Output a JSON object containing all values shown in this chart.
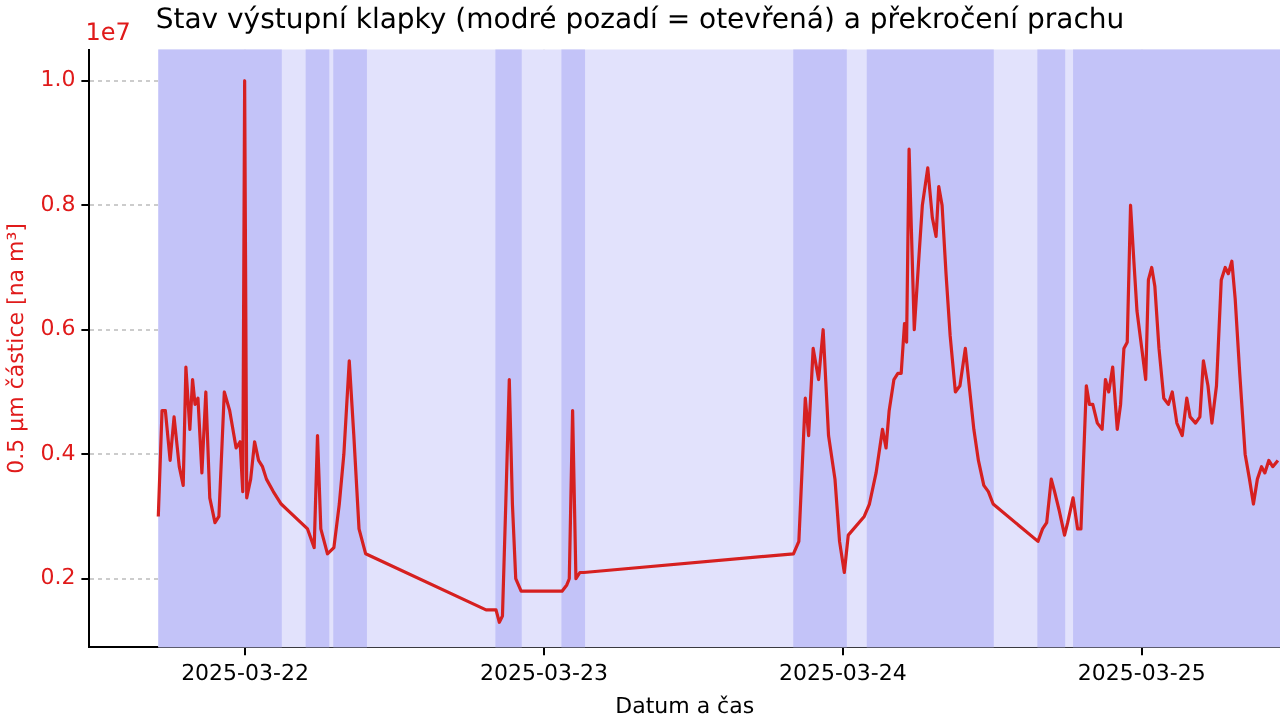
{
  "chart_data": {
    "type": "line",
    "title": "Stav výstupní klapky (modré pozadí = otevřená) a překročení prachu",
    "xlabel": "Datum a čas",
    "ylabel": "0.5 µm částice [na m³]",
    "annotations": [
      "1e7"
    ],
    "xlim": [
      "2025-03-21T11:30",
      "2025-03-25T11:06"
    ],
    "xticks": [
      "2025-03-22",
      "2025-03-23",
      "2025-03-24",
      "2025-03-25"
    ],
    "ylim": [
      0.09,
      1.05
    ],
    "yticks": [
      0.2,
      0.4,
      0.6,
      0.8,
      {
        "value": 1,
        "label": "1.0"
      }
    ],
    "grid": true,
    "legend": false,
    "marker": "none",
    "line_style": "solid",
    "bands": [
      {
        "axis": "x",
        "from": "2025-03-21T17:02",
        "to": "2025-03-25T11:06",
        "color": "#e2e2fc"
      },
      {
        "axis": "x",
        "from": "2025-03-21T17:02",
        "to": "2025-03-22T02:57",
        "color": "#c3c3f8"
      },
      {
        "axis": "x",
        "from": "2025-03-22T04:52",
        "to": "2025-03-22T06:46",
        "color": "#c3c3f8"
      },
      {
        "axis": "x",
        "from": "2025-03-22T07:05",
        "to": "2025-03-22T09:47",
        "color": "#c3c3f8"
      },
      {
        "axis": "x",
        "from": "2025-03-22T20:06",
        "to": "2025-03-22T22:13",
        "color": "#c3c3f8"
      },
      {
        "axis": "x",
        "from": "2025-03-23T01:24",
        "to": "2025-03-23T03:18",
        "color": "#c3c3f8"
      },
      {
        "axis": "x",
        "from": "2025-03-23T20:01",
        "to": "2025-03-24T00:19",
        "color": "#c3c3f8"
      },
      {
        "axis": "x",
        "from": "2025-03-24T01:55",
        "to": "2025-03-24T12:07",
        "color": "#c3c3f8"
      },
      {
        "axis": "x",
        "from": "2025-03-24T15:37",
        "to": "2025-03-24T17:51",
        "color": "#c3c3f8"
      },
      {
        "axis": "x",
        "from": "2025-03-24T18:29",
        "to": "2025-03-25T11:06",
        "color": "#c3c3f8"
      }
    ],
    "series": [
      {
        "color": "#d62020",
        "x": [
          "2025-03-21T17:02",
          "2025-03-21T17:20",
          "2025-03-21T17:36",
          "2025-03-21T17:59",
          "2025-03-21T18:18",
          "2025-03-21T18:43",
          "2025-03-21T19:02",
          "2025-03-21T19:15",
          "2025-03-21T19:34",
          "2025-03-21T19:47",
          "2025-03-21T19:59",
          "2025-03-21T20:13",
          "2025-03-21T20:32",
          "2025-03-21T20:51",
          "2025-03-21T21:10",
          "2025-03-21T21:35",
          "2025-03-21T21:54",
          "2025-03-21T22:20",
          "2025-03-21T22:46",
          "2025-03-21T23:17",
          "2025-03-21T23:36",
          "2025-03-21T23:49",
          "2025-03-21T23:58",
          "2025-03-22T00:08",
          "2025-03-22T00:27",
          "2025-03-22T00:46",
          "2025-03-22T01:05",
          "2025-03-22T01:24",
          "2025-03-22T01:43",
          "2025-03-22T02:16",
          "2025-03-22T02:54",
          "2025-03-22T05:01",
          "2025-03-22T05:33",
          "2025-03-22T05:49",
          "2025-03-22T06:05",
          "2025-03-22T06:37",
          "2025-03-22T07:08",
          "2025-03-22T07:34",
          "2025-03-22T07:56",
          "2025-03-22T08:22",
          "2025-03-22T08:44",
          "2025-03-22T09:09",
          "2025-03-22T09:41",
          "2025-03-22T19:21",
          "2025-03-22T20:09",
          "2025-03-22T20:25",
          "2025-03-22T20:40",
          "2025-03-22T20:56",
          "2025-03-22T21:13",
          "2025-03-22T21:28",
          "2025-03-22T21:44",
          "2025-03-22T22:10",
          "2025-03-23T01:27",
          "2025-03-23T01:50",
          "2025-03-23T02:02",
          "2025-03-23T02:18",
          "2025-03-23T02:34",
          "2025-03-23T02:53",
          "2025-03-23T03:12",
          "2025-03-23T20:02",
          "2025-03-23T20:28",
          "2025-03-23T20:33",
          "2025-03-23T20:59",
          "2025-03-23T21:15",
          "2025-03-23T21:37",
          "2025-03-23T22:03",
          "2025-03-23T22:25",
          "2025-03-23T22:51",
          "2025-03-23T23:22",
          "2025-03-23T23:44",
          "2025-03-24T00:07",
          "2025-03-24T00:26",
          "2025-03-24T01:43",
          "2025-03-24T02:08",
          "2025-03-24T02:40",
          "2025-03-24T03:11",
          "2025-03-24T03:28",
          "2025-03-24T03:43",
          "2025-03-24T04:06",
          "2025-03-24T04:25",
          "2025-03-24T04:41",
          "2025-03-24T04:57",
          "2025-03-24T05:07",
          "2025-03-24T05:19",
          "2025-03-24T05:44",
          "2025-03-24T06:07",
          "2025-03-24T06:23",
          "2025-03-24T06:49",
          "2025-03-24T07:11",
          "2025-03-24T07:29",
          "2025-03-24T07:42",
          "2025-03-24T07:58",
          "2025-03-24T08:17",
          "2025-03-24T08:37",
          "2025-03-24T09:02",
          "2025-03-24T09:24",
          "2025-03-24T09:50",
          "2025-03-24T10:12",
          "2025-03-24T10:31",
          "2025-03-24T10:53",
          "2025-03-24T11:19",
          "2025-03-24T11:41",
          "2025-03-24T12:04",
          "2025-03-24T15:40",
          "2025-03-24T16:02",
          "2025-03-24T16:22",
          "2025-03-24T16:44",
          "2025-03-24T17:00",
          "2025-03-24T17:22",
          "2025-03-24T17:48",
          "2025-03-24T18:03",
          "2025-03-24T18:29",
          "2025-03-24T18:51",
          "2025-03-24T19:07",
          "2025-03-24T19:33",
          "2025-03-24T19:48",
          "2025-03-24T20:04",
          "2025-03-24T20:26",
          "2025-03-24T20:49",
          "2025-03-24T21:05",
          "2025-03-24T21:21",
          "2025-03-24T21:40",
          "2025-03-24T22:02",
          "2025-03-24T22:18",
          "2025-03-24T22:34",
          "2025-03-24T22:50",
          "2025-03-24T23:06",
          "2025-03-24T23:22",
          "2025-03-24T23:37",
          "2025-03-25T00:00",
          "2025-03-25T00:19",
          "2025-03-25T00:32",
          "2025-03-25T00:48",
          "2025-03-25T01:03",
          "2025-03-25T01:23",
          "2025-03-25T01:46",
          "2025-03-25T02:08",
          "2025-03-25T02:27",
          "2025-03-25T02:49",
          "2025-03-25T03:15",
          "2025-03-25T03:37",
          "2025-03-25T03:53",
          "2025-03-25T04:19",
          "2025-03-25T04:40",
          "2025-03-25T04:57",
          "2025-03-25T05:19",
          "2025-03-25T05:38",
          "2025-03-25T06:00",
          "2025-03-25T06:23",
          "2025-03-25T06:42",
          "2025-03-25T06:57",
          "2025-03-25T07:14",
          "2025-03-25T07:30",
          "2025-03-25T07:52",
          "2025-03-25T08:18",
          "2025-03-25T08:39",
          "2025-03-25T08:58",
          "2025-03-25T09:17",
          "2025-03-25T09:37",
          "2025-03-25T09:53",
          "2025-03-25T10:12",
          "2025-03-25T10:31",
          "2025-03-25T10:56"
        ],
        "values": [
          0.3,
          0.47,
          0.47,
          0.39,
          0.46,
          0.38,
          0.35,
          0.54,
          0.44,
          0.52,
          0.48,
          0.49,
          0.37,
          0.5,
          0.33,
          0.29,
          0.3,
          0.5,
          0.47,
          0.41,
          0.42,
          0.34,
          1.0,
          0.33,
          0.36,
          0.42,
          0.39,
          0.38,
          0.36,
          0.34,
          0.32,
          0.28,
          0.25,
          0.43,
          0.28,
          0.24,
          0.25,
          0.32,
          0.4,
          0.55,
          0.43,
          0.28,
          0.24,
          0.15,
          0.15,
          0.13,
          0.14,
          0.32,
          0.52,
          0.32,
          0.2,
          0.18,
          0.18,
          0.19,
          0.2,
          0.47,
          0.2,
          0.21,
          0.21,
          0.24,
          0.26,
          0.26,
          0.49,
          0.43,
          0.57,
          0.52,
          0.6,
          0.43,
          0.36,
          0.26,
          0.21,
          0.27,
          0.3,
          0.32,
          0.37,
          0.44,
          0.41,
          0.47,
          0.52,
          0.53,
          0.53,
          0.61,
          0.58,
          0.89,
          0.6,
          0.72,
          0.8,
          0.86,
          0.78,
          0.75,
          0.83,
          0.8,
          0.69,
          0.59,
          0.5,
          0.51,
          0.57,
          0.5,
          0.44,
          0.39,
          0.35,
          0.34,
          0.32,
          0.26,
          0.28,
          0.29,
          0.36,
          0.34,
          0.31,
          0.27,
          0.29,
          0.33,
          0.28,
          0.28,
          0.51,
          0.48,
          0.48,
          0.45,
          0.44,
          0.52,
          0.5,
          0.54,
          0.44,
          0.48,
          0.57,
          0.58,
          0.8,
          0.71,
          0.63,
          0.57,
          0.52,
          0.68,
          0.7,
          0.67,
          0.57,
          0.49,
          0.48,
          0.5,
          0.45,
          0.43,
          0.49,
          0.46,
          0.45,
          0.46,
          0.55,
          0.51,
          0.45,
          0.51,
          0.68,
          0.7,
          0.69,
          0.71,
          0.65,
          0.53,
          0.4,
          0.36,
          0.32,
          0.36,
          0.38,
          0.37,
          0.39,
          0.38,
          0.39
        ]
      }
    ]
  }
}
